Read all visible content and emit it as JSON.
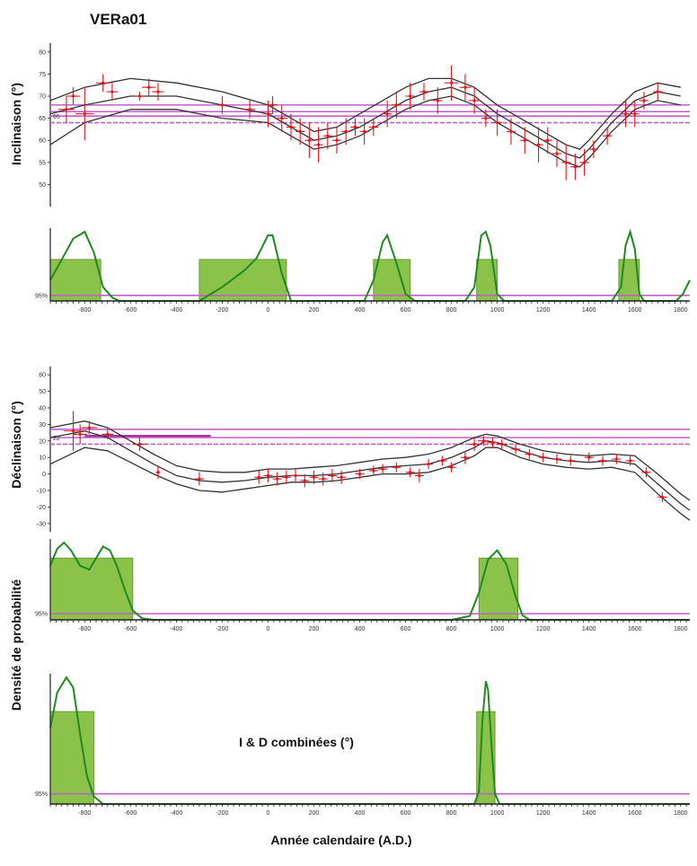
{
  "figure": {
    "title": "VERa01",
    "xlabel": "Année calendaire (A.D.)",
    "density_ylabel": "Densité de probabilité",
    "combined_label": "I & D combinées (°)",
    "colors": {
      "curve": "#333333",
      "data": "#e8141c",
      "reference": "#c060c8",
      "density_fill": "#8bc34a",
      "density_line": "#1f8a1f"
    }
  },
  "chart_data": [
    {
      "id": "inclination",
      "type": "line",
      "ylabel": "Inclinaison (°)",
      "x_ticks": [
        -800,
        -600,
        -400,
        -200,
        0,
        200,
        400,
        600,
        800,
        1000,
        1200,
        1400,
        1600,
        1800
      ],
      "y_ticks": [
        50,
        55,
        60,
        65,
        70,
        75,
        80
      ],
      "xlim": [
        -950,
        1840
      ],
      "ylim": [
        45,
        82
      ],
      "reference_label": "65",
      "reference_lines": [
        64,
        65.5,
        66.5,
        68
      ],
      "series": [
        {
          "x": [
            -950,
            -800,
            -600,
            -400,
            -200,
            0,
            100,
            200,
            300,
            400,
            500,
            600,
            700,
            800,
            900,
            1000,
            1100,
            1200,
            1300,
            1360,
            1400,
            1500,
            1600,
            1700,
            1800
          ],
          "y": [
            66,
            68,
            70,
            70,
            68,
            66,
            63,
            60,
            61,
            63,
            66,
            69,
            71,
            72,
            70,
            66,
            63,
            60,
            57,
            56,
            58,
            64,
            69,
            71,
            70
          ]
        },
        {
          "x": [
            -950,
            -800,
            -600,
            -400,
            -200,
            0,
            100,
            200,
            300,
            400,
            500,
            600,
            700,
            800,
            900,
            1000,
            1100,
            1200,
            1300,
            1360,
            1400,
            1500,
            1600,
            1700,
            1800
          ],
          "y": [
            69,
            72,
            74,
            73,
            71,
            68,
            65,
            62,
            63,
            66,
            69,
            72,
            74,
            74,
            72,
            68,
            65,
            62,
            59,
            58,
            60,
            66,
            71,
            73,
            72
          ]
        },
        {
          "x": [
            -950,
            -800,
            -600,
            -400,
            -200,
            0,
            100,
            200,
            300,
            400,
            500,
            600,
            700,
            800,
            900,
            1000,
            1100,
            1200,
            1300,
            1360,
            1400,
            1500,
            1600,
            1700,
            1800
          ],
          "y": [
            59,
            64,
            67,
            67,
            65,
            64,
            61,
            58,
            59,
            61,
            64,
            67,
            69,
            70,
            68,
            64,
            61,
            58,
            55,
            54,
            56,
            62,
            67,
            69,
            68
          ]
        }
      ],
      "points": [
        [
          -880,
          67,
          3,
          70
        ],
        [
          -850,
          70,
          2,
          60
        ],
        [
          -800,
          66,
          6,
          80
        ],
        [
          -720,
          73,
          2,
          60
        ],
        [
          -680,
          71,
          2,
          50
        ],
        [
          -560,
          70,
          1,
          40
        ],
        [
          -520,
          72,
          2,
          60
        ],
        [
          -480,
          71,
          2,
          50
        ],
        [
          -200,
          68,
          2,
          40
        ],
        [
          -80,
          67,
          2,
          50
        ],
        [
          0,
          66,
          3,
          40
        ],
        [
          20,
          68,
          2,
          40
        ],
        [
          60,
          65,
          3,
          50
        ],
        [
          100,
          63,
          3,
          40
        ],
        [
          140,
          62,
          3,
          40
        ],
        [
          180,
          60,
          4,
          40
        ],
        [
          220,
          59,
          4,
          40
        ],
        [
          260,
          61,
          3,
          40
        ],
        [
          300,
          60,
          3,
          40
        ],
        [
          340,
          62,
          3,
          40
        ],
        [
          380,
          63,
          2,
          40
        ],
        [
          420,
          62,
          3,
          40
        ],
        [
          460,
          63,
          2,
          40
        ],
        [
          520,
          66,
          3,
          40
        ],
        [
          560,
          68,
          3,
          40
        ],
        [
          620,
          70,
          3,
          40
        ],
        [
          680,
          71,
          2,
          40
        ],
        [
          740,
          69,
          3,
          40
        ],
        [
          800,
          73,
          4,
          60
        ],
        [
          860,
          72,
          3,
          50
        ],
        [
          900,
          69,
          3,
          50
        ],
        [
          950,
          65,
          2,
          40
        ],
        [
          1000,
          64,
          3,
          40
        ],
        [
          1060,
          62,
          3,
          40
        ],
        [
          1120,
          60,
          3,
          40
        ],
        [
          1180,
          59,
          4,
          40
        ],
        [
          1220,
          60,
          3,
          40
        ],
        [
          1260,
          57,
          3,
          40
        ],
        [
          1300,
          55,
          4,
          40
        ],
        [
          1340,
          54,
          3,
          40
        ],
        [
          1380,
          55,
          3,
          40
        ],
        [
          1420,
          58,
          2,
          40
        ],
        [
          1480,
          61,
          2,
          40
        ],
        [
          1560,
          66,
          3,
          40
        ],
        [
          1600,
          66,
          3,
          40
        ],
        [
          1640,
          69,
          2,
          40
        ],
        [
          1700,
          71,
          2,
          40
        ]
      ]
    },
    {
      "id": "density-inclination",
      "type": "area",
      "y_tick": "95%",
      "intervals": [
        [
          -950,
          -730
        ],
        [
          -300,
          80
        ],
        [
          460,
          620
        ],
        [
          910,
          1000
        ],
        [
          1530,
          1620
        ]
      ],
      "density": {
        "x": [
          -950,
          -900,
          -850,
          -800,
          -760,
          -720,
          -680,
          -650,
          -600,
          -400,
          -300,
          -200,
          -100,
          -50,
          0,
          20,
          60,
          100,
          300,
          420,
          460,
          500,
          520,
          560,
          600,
          640,
          860,
          900,
          930,
          950,
          970,
          1000,
          1030,
          1500,
          1540,
          1560,
          1580,
          1600,
          1620,
          1640,
          1780,
          1810,
          1840
        ],
        "y": [
          0.3,
          0.6,
          0.9,
          1.0,
          0.7,
          0.2,
          0.05,
          0.0,
          0.0,
          0.0,
          0.0,
          0.2,
          0.45,
          0.62,
          0.95,
          0.95,
          0.4,
          0.0,
          0.0,
          0.0,
          0.3,
          0.85,
          0.95,
          0.55,
          0.1,
          0.0,
          0.0,
          0.2,
          0.95,
          1.0,
          0.8,
          0.1,
          0.0,
          0.0,
          0.2,
          0.8,
          1.0,
          0.75,
          0.1,
          0.0,
          0.0,
          0.1,
          0.3
        ]
      },
      "interval_height": 0.6
    },
    {
      "id": "declination",
      "type": "line",
      "ylabel": "Déclinaison (°)",
      "x_ticks": [
        -800,
        -600,
        -400,
        -200,
        0,
        200,
        400,
        600,
        800,
        1000,
        1200,
        1400,
        1600,
        1800
      ],
      "y_ticks": [
        -30,
        -20,
        -10,
        0,
        10,
        20,
        30,
        40,
        50,
        60
      ],
      "xlim": [
        -950,
        1840
      ],
      "ylim": [
        -35,
        65
      ],
      "reference_label": "22",
      "reference_lines": [
        18,
        22,
        27
      ],
      "series": [
        {
          "x": [
            -950,
            -800,
            -700,
            -600,
            -500,
            -400,
            -300,
            -200,
            -100,
            0,
            100,
            200,
            300,
            400,
            500,
            600,
            700,
            800,
            900,
            950,
            1000,
            1100,
            1200,
            1300,
            1400,
            1500,
            1600,
            1700,
            1800,
            1840
          ],
          "y": [
            22,
            26,
            22,
            14,
            6,
            -1,
            -4,
            -5,
            -4,
            -2,
            -1,
            -1,
            0,
            2,
            4,
            5,
            6,
            10,
            16,
            20,
            19,
            14,
            10,
            8,
            7,
            8,
            6,
            -6,
            -18,
            -22
          ]
        },
        {
          "x": [
            -950,
            -800,
            -700,
            -600,
            -500,
            -400,
            -300,
            -200,
            -100,
            0,
            100,
            200,
            300,
            400,
            500,
            600,
            700,
            800,
            900,
            950,
            1000,
            1100,
            1200,
            1300,
            1400,
            1500,
            1600,
            1700,
            1800,
            1840
          ],
          "y": [
            28,
            32,
            28,
            20,
            12,
            5,
            2,
            1,
            1,
            3,
            3,
            4,
            5,
            7,
            9,
            10,
            12,
            16,
            22,
            24,
            23,
            18,
            14,
            12,
            11,
            12,
            11,
            0,
            -12,
            -16
          ]
        },
        {
          "x": [
            -950,
            -800,
            -700,
            -600,
            -500,
            -400,
            -300,
            -200,
            -100,
            0,
            100,
            200,
            300,
            400,
            500,
            600,
            700,
            800,
            900,
            950,
            1000,
            1100,
            1200,
            1300,
            1400,
            1500,
            1600,
            1700,
            1800,
            1840
          ],
          "y": [
            6,
            16,
            14,
            7,
            0,
            -6,
            -10,
            -11,
            -9,
            -7,
            -5,
            -5,
            -4,
            -2,
            0,
            0,
            1,
            5,
            11,
            16,
            16,
            10,
            6,
            4,
            3,
            4,
            1,
            -12,
            -24,
            -28
          ]
        }
      ],
      "points": [
        [
          -850,
          26,
          12,
          80
        ],
        [
          -820,
          24,
          6,
          60
        ],
        [
          -780,
          28,
          4,
          70
        ],
        [
          -700,
          24,
          3,
          50
        ],
        [
          -560,
          18,
          4,
          60
        ],
        [
          -480,
          1,
          4,
          20
        ],
        [
          -300,
          -3,
          4,
          40
        ],
        [
          -40,
          -2,
          4,
          40
        ],
        [
          0,
          -1,
          4,
          40
        ],
        [
          40,
          -3,
          4,
          40
        ],
        [
          80,
          -2,
          4,
          40
        ],
        [
          120,
          -1,
          4,
          40
        ],
        [
          160,
          -4,
          4,
          40
        ],
        [
          200,
          -2,
          4,
          40
        ],
        [
          240,
          -3,
          4,
          40
        ],
        [
          280,
          -1,
          4,
          40
        ],
        [
          320,
          -2,
          4,
          40
        ],
        [
          400,
          0,
          3,
          40
        ],
        [
          460,
          2,
          3,
          40
        ],
        [
          500,
          3,
          3,
          40
        ],
        [
          560,
          4,
          3,
          40
        ],
        [
          620,
          1,
          3,
          40
        ],
        [
          660,
          -1,
          4,
          40
        ],
        [
          700,
          6,
          3,
          40
        ],
        [
          760,
          8,
          3,
          40
        ],
        [
          800,
          4,
          3,
          40
        ],
        [
          860,
          10,
          4,
          40
        ],
        [
          900,
          18,
          4,
          50
        ],
        [
          940,
          20,
          3,
          50
        ],
        [
          980,
          19,
          3,
          50
        ],
        [
          1020,
          18,
          3,
          50
        ],
        [
          1080,
          15,
          3,
          40
        ],
        [
          1140,
          12,
          3,
          40
        ],
        [
          1200,
          10,
          3,
          40
        ],
        [
          1260,
          9,
          3,
          40
        ],
        [
          1320,
          8,
          3,
          40
        ],
        [
          1400,
          10,
          3,
          40
        ],
        [
          1460,
          8,
          3,
          40
        ],
        [
          1520,
          9,
          3,
          40
        ],
        [
          1580,
          8,
          3,
          40
        ],
        [
          1650,
          1,
          3,
          40
        ],
        [
          1720,
          -14,
          3,
          40
        ]
      ],
      "long_bar": {
        "x1": -800,
        "x2": -250,
        "y": 23
      }
    },
    {
      "id": "density-declination",
      "type": "area",
      "y_tick": "95%",
      "intervals": [
        [
          -950,
          -590
        ],
        [
          920,
          1090
        ]
      ],
      "density": {
        "x": [
          -950,
          -920,
          -890,
          -860,
          -820,
          -780,
          -750,
          -720,
          -690,
          -660,
          -620,
          -590,
          -550,
          -500,
          -450,
          800,
          880,
          920,
          960,
          1000,
          1040,
          1080,
          1110,
          1140,
          1840
        ],
        "y": [
          0.7,
          0.92,
          1.0,
          0.9,
          0.7,
          0.65,
          0.8,
          0.95,
          0.9,
          0.7,
          0.35,
          0.12,
          0.02,
          0.0,
          0.0,
          0.0,
          0.05,
          0.35,
          0.78,
          0.9,
          0.72,
          0.3,
          0.06,
          0.0,
          0.0
        ]
      },
      "interval_height": 0.8
    },
    {
      "id": "density-combined",
      "type": "area",
      "y_tick": "95%",
      "intervals": [
        [
          -950,
          -760
        ],
        [
          910,
          990
        ]
      ],
      "density": {
        "x": [
          -950,
          -920,
          -880,
          -850,
          -820,
          -790,
          -760,
          -720,
          -680,
          900,
          920,
          935,
          950,
          960,
          975,
          990,
          1010,
          1840
        ],
        "y": [
          0.6,
          0.88,
          1.0,
          0.92,
          0.55,
          0.22,
          0.06,
          0.0,
          0.0,
          0.0,
          0.1,
          0.65,
          0.97,
          0.9,
          0.45,
          0.08,
          0.0,
          0.0
        ]
      },
      "interval_height": 0.73
    }
  ]
}
